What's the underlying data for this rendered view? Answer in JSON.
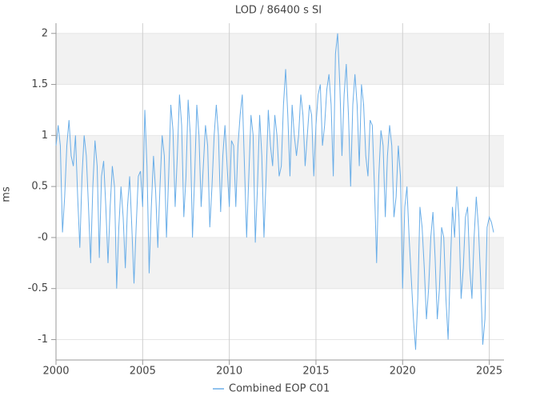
{
  "chart_data": {
    "type": "line",
    "title": "LOD / 86400 s SI",
    "y_label": "ms",
    "xlim": [
      2000,
      2025.85
    ],
    "xticks": [
      2000,
      2005,
      2010,
      2015,
      2020,
      2025
    ],
    "ylim": [
      -1.2,
      2.1
    ],
    "yticks": [
      -1,
      -0.5,
      {
        "value": 0,
        "label": "-0"
      },
      0.5,
      1,
      1.5,
      2
    ],
    "grid": true,
    "legend": "bottom",
    "x": [
      2000,
      2000.125,
      2000.25,
      2000.375,
      2000.5,
      2000.625,
      2000.75,
      2000.875,
      2001,
      2001.125,
      2001.25,
      2001.375,
      2001.5,
      2001.625,
      2001.75,
      2001.875,
      2002,
      2002.125,
      2002.25,
      2002.375,
      2002.5,
      2002.625,
      2002.75,
      2002.875,
      2003,
      2003.125,
      2003.25,
      2003.375,
      2003.5,
      2003.625,
      2003.75,
      2003.875,
      2004,
      2004.125,
      2004.25,
      2004.375,
      2004.5,
      2004.625,
      2004.75,
      2004.875,
      2005,
      2005.125,
      2005.25,
      2005.375,
      2005.5,
      2005.625,
      2005.75,
      2005.875,
      2006,
      2006.125,
      2006.25,
      2006.375,
      2006.5,
      2006.625,
      2006.75,
      2006.875,
      2007,
      2007.125,
      2007.25,
      2007.375,
      2007.5,
      2007.625,
      2007.75,
      2007.875,
      2008,
      2008.125,
      2008.25,
      2008.375,
      2008.5,
      2008.625,
      2008.75,
      2008.875,
      2009,
      2009.125,
      2009.25,
      2009.375,
      2009.5,
      2009.625,
      2009.75,
      2009.875,
      2010,
      2010.125,
      2010.25,
      2010.375,
      2010.5,
      2010.625,
      2010.75,
      2010.875,
      2011,
      2011.125,
      2011.25,
      2011.375,
      2011.5,
      2011.625,
      2011.75,
      2011.875,
      2012,
      2012.125,
      2012.25,
      2012.375,
      2012.5,
      2012.625,
      2012.75,
      2012.875,
      2013,
      2013.125,
      2013.25,
      2013.375,
      2013.5,
      2013.625,
      2013.75,
      2013.875,
      2014,
      2014.125,
      2014.25,
      2014.375,
      2014.5,
      2014.625,
      2014.75,
      2014.875,
      2015,
      2015.125,
      2015.25,
      2015.375,
      2015.5,
      2015.625,
      2015.75,
      2015.875,
      2016,
      2016.125,
      2016.25,
      2016.375,
      2016.5,
      2016.625,
      2016.75,
      2016.875,
      2017,
      2017.125,
      2017.25,
      2017.375,
      2017.5,
      2017.625,
      2017.75,
      2017.875,
      2018,
      2018.125,
      2018.25,
      2018.375,
      2018.5,
      2018.625,
      2018.75,
      2018.875,
      2019,
      2019.125,
      2019.25,
      2019.375,
      2019.5,
      2019.625,
      2019.75,
      2019.875,
      2020,
      2020.125,
      2020.25,
      2020.375,
      2020.5,
      2020.625,
      2020.75,
      2020.875,
      2021,
      2021.125,
      2021.25,
      2021.375,
      2021.5,
      2021.625,
      2021.75,
      2021.875,
      2022,
      2022.125,
      2022.25,
      2022.375,
      2022.5,
      2022.625,
      2022.75,
      2022.875,
      2023,
      2023.125,
      2023.25,
      2023.375,
      2023.5,
      2023.625,
      2023.75,
      2023.875,
      2024,
      2024.125,
      2024.25,
      2024.375,
      2024.5,
      2024.625,
      2024.75,
      2024.875,
      2025,
      2025.125,
      2025.25
    ],
    "series": [
      {
        "name": "Combined EOP C01",
        "color": "#6aaee8",
        "values": [
          0.9,
          1.1,
          0.9,
          0.05,
          0.4,
          0.9,
          1.15,
          0.8,
          0.7,
          1.0,
          0.4,
          -0.1,
          0.6,
          1.0,
          0.8,
          0.3,
          -0.25,
          0.5,
          0.95,
          0.7,
          -0.2,
          0.6,
          0.75,
          0.3,
          -0.25,
          0.3,
          0.7,
          0.5,
          -0.5,
          0.1,
          0.5,
          0.2,
          -0.3,
          0.3,
          0.6,
          0.1,
          -0.45,
          0.1,
          0.6,
          0.65,
          0.3,
          1.25,
          0.7,
          -0.35,
          0.3,
          0.8,
          0.45,
          -0.1,
          0.5,
          1.0,
          0.8,
          0.0,
          0.6,
          1.3,
          1.05,
          0.3,
          0.8,
          1.4,
          1.1,
          0.2,
          0.6,
          1.35,
          1.0,
          0.0,
          0.6,
          1.3,
          1.0,
          0.3,
          0.7,
          1.1,
          0.9,
          0.1,
          0.5,
          1.0,
          1.3,
          1.0,
          0.25,
          0.8,
          1.1,
          0.7,
          0.3,
          0.95,
          0.9,
          0.3,
          0.9,
          1.2,
          1.4,
          0.7,
          0.0,
          0.6,
          1.2,
          1.0,
          -0.05,
          0.5,
          1.2,
          0.8,
          0.0,
          0.6,
          1.25,
          0.9,
          0.7,
          1.2,
          1.0,
          0.6,
          0.7,
          1.3,
          1.65,
          1.2,
          0.6,
          1.3,
          1.0,
          0.8,
          1.0,
          1.4,
          1.2,
          0.7,
          1.0,
          1.3,
          1.2,
          0.6,
          1.1,
          1.4,
          1.5,
          0.9,
          1.1,
          1.45,
          1.6,
          1.3,
          0.6,
          1.8,
          2.0,
          1.5,
          0.8,
          1.4,
          1.7,
          1.2,
          0.5,
          1.3,
          1.6,
          1.3,
          0.7,
          1.5,
          1.3,
          0.8,
          0.6,
          1.15,
          1.1,
          0.5,
          -0.25,
          0.6,
          1.05,
          0.9,
          0.2,
          0.8,
          1.1,
          0.9,
          0.2,
          0.4,
          0.9,
          0.6,
          -0.5,
          0.3,
          0.5,
          0.0,
          -0.4,
          -0.8,
          -1.1,
          -0.6,
          0.3,
          0.1,
          -0.3,
          -0.8,
          -0.5,
          0.0,
          0.25,
          -0.2,
          -0.8,
          -0.5,
          0.1,
          0.0,
          -0.6,
          -1.0,
          -0.3,
          0.3,
          0.0,
          0.5,
          0.2,
          -0.6,
          -0.3,
          0.2,
          0.3,
          -0.3,
          -0.6,
          0.0,
          0.4,
          0.1,
          -0.4,
          -1.05,
          -0.8,
          0.1,
          0.2,
          0.15,
          0.05
        ]
      }
    ]
  }
}
